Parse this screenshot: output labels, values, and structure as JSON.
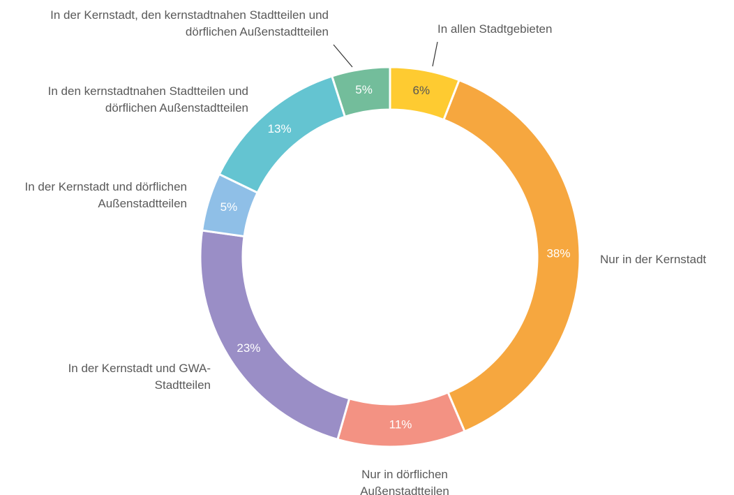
{
  "chart_data": {
    "type": "donut",
    "categories": [
      "In allen Stadtgebieten",
      "Nur in der Kernstadt",
      "Nur in dörflichen Außenstadtteilen",
      "In der Kernstadt und GWA-Stadtteilen",
      "In der Kernstadt und dörflichen Außenstadtteilen",
      "In den kernstadtnahen Stadtteilen und dörflichen Außenstadtteilen",
      "In der Kernstadt, den kernstadtnahen Stadtteilen und dörflichen Außenstadtteilen"
    ],
    "values": [
      6,
      38,
      11,
      23,
      5,
      13,
      5
    ],
    "value_labels": [
      "6%",
      "38%",
      "11%",
      "23%",
      "5%",
      "13%",
      "5%"
    ],
    "colors": [
      "#fecb31",
      "#f6a73f",
      "#f39283",
      "#9a8ec6",
      "#8fbfe7",
      "#64c4d1",
      "#73bd9b"
    ]
  }
}
